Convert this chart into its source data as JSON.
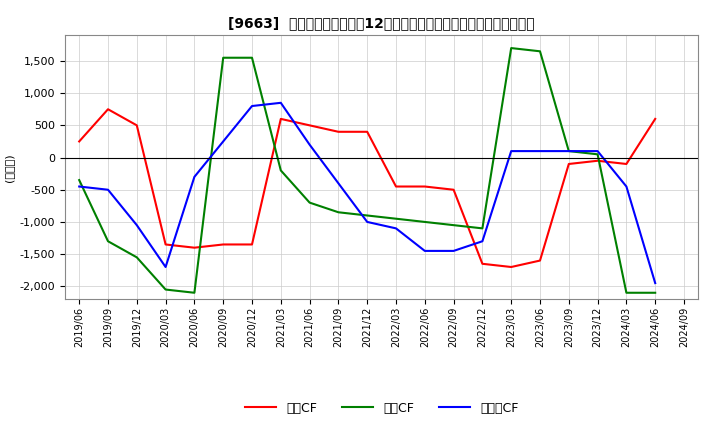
{
  "title": "[9663]  キャッシュフローの12か月移動合計の対前年同期増減額の推移",
  "ylabel": "(百万円)",
  "ylim": [
    -2200,
    1900
  ],
  "yticks": [
    -2000,
    -1500,
    -1000,
    -500,
    0,
    500,
    1000,
    1500
  ],
  "dates": [
    "2019/06",
    "2019/09",
    "2019/12",
    "2020/03",
    "2020/06",
    "2020/09",
    "2020/12",
    "2021/03",
    "2021/06",
    "2021/09",
    "2021/12",
    "2022/03",
    "2022/06",
    "2022/09",
    "2022/12",
    "2023/03",
    "2023/06",
    "2023/09",
    "2023/12",
    "2024/03",
    "2024/06",
    "2024/09"
  ],
  "operating_cf": [
    250,
    750,
    500,
    -1350,
    -1400,
    -1350,
    -1350,
    600,
    500,
    400,
    400,
    -450,
    -450,
    -500,
    -1650,
    -1700,
    -1600,
    -100,
    -50,
    -100,
    600,
    null
  ],
  "investing_cf": [
    -350,
    -1300,
    -1550,
    -2050,
    -2100,
    1550,
    1550,
    -200,
    -700,
    -850,
    -900,
    -950,
    -1000,
    -1050,
    -1100,
    1700,
    1650,
    100,
    50,
    -2100,
    -2100,
    null
  ],
  "free_cf": [
    -450,
    -500,
    -1050,
    -1700,
    -300,
    250,
    800,
    850,
    200,
    -400,
    -1000,
    -1100,
    -1450,
    -1450,
    -1300,
    100,
    100,
    100,
    100,
    -450,
    -1950,
    null
  ],
  "operating_color": "#ff0000",
  "investing_color": "#008000",
  "free_cf_color": "#0000ff",
  "bg_color": "#ffffff",
  "grid_color": "#cccccc",
  "legend_labels": [
    "営業CF",
    "投資CF",
    "フリーCF"
  ]
}
